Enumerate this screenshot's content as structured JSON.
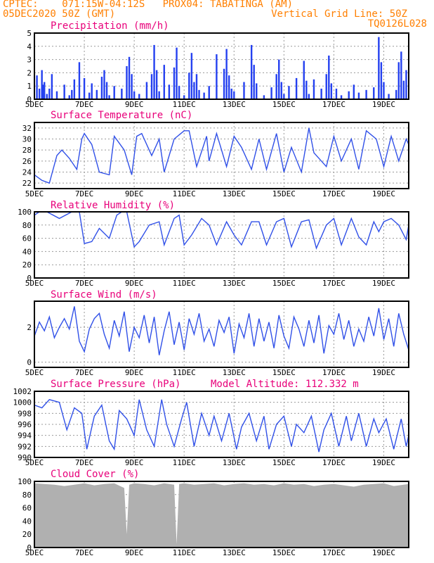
{
  "header": {
    "line1": "CPTEC:    071:15W-04:12S   PROX04: TABATINGA (AM)",
    "line2_left": "05DEC2020 50Z (GMT)",
    "line2_right": "Vertical Grid Line: 50Z",
    "line3_right": "TQ0126L028"
  },
  "x_axis": {
    "ticks": [
      {
        "label": "5DEC",
        "day": 5
      },
      {
        "label": "7DEC",
        "day": 7
      },
      {
        "label": "9DEC",
        "day": 9
      },
      {
        "label": "11DEC",
        "day": 11
      },
      {
        "label": "13DEC",
        "day": 13
      },
      {
        "label": "15DEC",
        "day": 15
      },
      {
        "label": "17DEC",
        "day": 17
      },
      {
        "label": "19DEC",
        "day": 19
      }
    ],
    "start_day": 5,
    "end_day": 20
  },
  "colors": {
    "line": "#3050e8",
    "bar": "#2440f0",
    "cloud": "#b0b0b0",
    "title": "#e8007a",
    "header": "#ff7f00"
  },
  "chart_data": [
    {
      "type": "bar",
      "title": "Precipitation (mm/h)",
      "ylim": [
        0,
        5
      ],
      "yticks": [
        "0",
        "1",
        "2",
        "3",
        "4",
        "5"
      ],
      "x": [
        5.1,
        5.2,
        5.3,
        5.35,
        5.4,
        5.5,
        5.6,
        5.7,
        5.9,
        6.2,
        6.4,
        6.5,
        6.6,
        6.8,
        7.0,
        7.2,
        7.3,
        7.5,
        7.7,
        7.8,
        7.9,
        8.0,
        8.2,
        8.5,
        8.7,
        8.8,
        8.9,
        9.0,
        9.2,
        9.5,
        9.7,
        9.8,
        9.9,
        10.0,
        10.2,
        10.4,
        10.6,
        10.7,
        10.8,
        11.0,
        11.2,
        11.3,
        11.4,
        11.5,
        11.6,
        11.8,
        12.0,
        12.3,
        12.6,
        12.7,
        12.8,
        12.9,
        13.0,
        13.4,
        13.7,
        13.8,
        13.9,
        14.2,
        14.5,
        14.7,
        14.8,
        14.9,
        15.0,
        15.2,
        15.5,
        15.8,
        15.9,
        16.0,
        16.2,
        16.5,
        16.7,
        16.8,
        16.9,
        17.1,
        17.3,
        17.6,
        17.8,
        18.0,
        18.3,
        18.6,
        18.8,
        18.9,
        19.0,
        19.2,
        19.5,
        19.6,
        19.7,
        19.8,
        19.9
      ],
      "values": [
        1.8,
        0.8,
        2.2,
        1.1,
        1.3,
        0.4,
        0.8,
        1.9,
        0.6,
        1.1,
        0.3,
        0.7,
        1.5,
        2.8,
        1.6,
        0.5,
        1.2,
        0.7,
        1.7,
        2.2,
        1.3,
        0.3,
        1.0,
        0.8,
        2.5,
        3.2,
        1.9,
        0.6,
        0.4,
        1.3,
        1.9,
        4.1,
        2.2,
        0.6,
        2.6,
        1.1,
        2.4,
        3.9,
        1.0,
        0.3,
        2.0,
        3.5,
        1.3,
        1.9,
        0.7,
        0.5,
        1.0,
        3.4,
        2.3,
        3.8,
        1.8,
        0.8,
        0.6,
        1.3,
        4.1,
        2.6,
        1.2,
        0.3,
        0.9,
        1.9,
        3.0,
        1.3,
        0.4,
        1.0,
        1.6,
        2.9,
        1.4,
        0.4,
        1.5,
        0.8,
        1.9,
        3.3,
        1.2,
        0.8,
        0.3,
        0.6,
        1.1,
        0.5,
        0.7,
        0.9,
        4.7,
        2.8,
        1.3,
        0.4,
        0.7,
        2.8,
        3.6,
        1.4,
        2.2
      ]
    },
    {
      "type": "line",
      "title": "Surface Temperature (nC)",
      "ylim": [
        21,
        33
      ],
      "yticks": [
        "22",
        "24",
        "26",
        "28",
        "30",
        "32"
      ],
      "x": [
        5.0,
        5.3,
        5.6,
        5.9,
        6.1,
        6.4,
        6.7,
        6.9,
        7.0,
        7.3,
        7.6,
        8.0,
        8.2,
        8.6,
        8.9,
        9.1,
        9.3,
        9.7,
        10.0,
        10.2,
        10.6,
        11.0,
        11.2,
        11.5,
        11.9,
        12.0,
        12.3,
        12.7,
        13.0,
        13.3,
        13.7,
        14.0,
        14.3,
        14.7,
        15.0,
        15.3,
        15.7,
        16.0,
        16.2,
        16.7,
        17.0,
        17.3,
        17.7,
        18.0,
        18.3,
        18.7,
        19.0,
        19.3,
        19.6,
        19.9,
        20.0
      ],
      "values": [
        23.5,
        22.5,
        22.0,
        27.0,
        28.0,
        26.5,
        24.5,
        30.0,
        31.0,
        29.0,
        24.0,
        23.5,
        30.5,
        28.0,
        23.5,
        30.5,
        31.0,
        27.0,
        30.0,
        24.0,
        30.0,
        31.5,
        31.5,
        25.0,
        30.5,
        26.0,
        31.0,
        25.0,
        30.5,
        28.5,
        24.5,
        30.0,
        24.5,
        31.0,
        24.0,
        28.5,
        24.0,
        32.0,
        27.5,
        25.0,
        30.5,
        26.0,
        30.0,
        24.5,
        31.5,
        30.0,
        25.0,
        30.5,
        26.0,
        30.0,
        29.0
      ]
    },
    {
      "type": "line",
      "title": "Relative Humidity (%)",
      "ylim": [
        0,
        100
      ],
      "yticks": [
        "0",
        "20",
        "40",
        "60",
        "80",
        "100"
      ],
      "x": [
        5.0,
        5.2,
        5.5,
        6.0,
        6.5,
        6.8,
        7.0,
        7.3,
        7.6,
        8.0,
        8.3,
        8.5,
        8.7,
        9.0,
        9.2,
        9.6,
        10.0,
        10.2,
        10.6,
        10.8,
        11.0,
        11.3,
        11.7,
        12.0,
        12.3,
        12.7,
        13.0,
        13.3,
        13.7,
        14.0,
        14.3,
        14.7,
        15.0,
        15.3,
        15.7,
        16.0,
        16.3,
        16.7,
        17.0,
        17.3,
        17.7,
        18.0,
        18.3,
        18.6,
        18.8,
        19.0,
        19.3,
        19.6,
        19.9,
        20.0
      ],
      "values": [
        95,
        100,
        100,
        90,
        100,
        100,
        52,
        55,
        75,
        60,
        95,
        100,
        100,
        47,
        55,
        80,
        85,
        50,
        90,
        95,
        50,
        65,
        90,
        80,
        50,
        85,
        65,
        50,
        85,
        85,
        50,
        85,
        90,
        47,
        85,
        88,
        45,
        80,
        90,
        50,
        90,
        62,
        50,
        85,
        70,
        85,
        90,
        80,
        58,
        80
      ]
    },
    {
      "type": "line",
      "title": "Surface Wind (m/s)",
      "ylim": [
        -0.3,
        3.5
      ],
      "yticks": [
        "0",
        "2"
      ],
      "x": [
        5.0,
        5.2,
        5.4,
        5.6,
        5.8,
        6.0,
        6.2,
        6.4,
        6.6,
        6.8,
        7.0,
        7.2,
        7.4,
        7.6,
        7.8,
        8.0,
        8.2,
        8.4,
        8.6,
        8.8,
        9.0,
        9.2,
        9.4,
        9.6,
        9.8,
        10.0,
        10.2,
        10.4,
        10.6,
        10.8,
        11.0,
        11.2,
        11.4,
        11.6,
        11.8,
        12.0,
        12.2,
        12.4,
        12.6,
        12.8,
        13.0,
        13.2,
        13.4,
        13.6,
        13.8,
        14.0,
        14.2,
        14.4,
        14.6,
        14.8,
        15.0,
        15.2,
        15.4,
        15.6,
        15.8,
        16.0,
        16.2,
        16.4,
        16.6,
        16.8,
        17.0,
        17.2,
        17.4,
        17.6,
        17.8,
        18.0,
        18.2,
        18.4,
        18.6,
        18.8,
        19.0,
        19.2,
        19.4,
        19.6,
        19.8,
        20.0
      ],
      "values": [
        1.5,
        2.3,
        1.8,
        2.6,
        1.4,
        2.0,
        2.5,
        1.9,
        3.2,
        1.2,
        0.6,
        1.9,
        2.5,
        2.8,
        1.6,
        0.8,
        2.4,
        1.5,
        2.9,
        0.6,
        2.0,
        1.4,
        2.7,
        1.1,
        2.6,
        0.4,
        1.8,
        2.9,
        1.0,
        2.3,
        0.7,
        2.5,
        1.6,
        2.8,
        1.2,
        1.9,
        0.9,
        2.4,
        1.7,
        2.6,
        0.5,
        2.2,
        1.4,
        2.8,
        0.9,
        2.5,
        1.2,
        2.3,
        0.8,
        2.7,
        1.5,
        0.8,
        2.6,
        1.9,
        0.9,
        2.4,
        1.1,
        2.7,
        0.5,
        2.1,
        1.6,
        2.8,
        1.3,
        2.4,
        0.9,
        1.9,
        1.2,
        2.6,
        1.5,
        3.1,
        1.3,
        2.5,
        0.9,
        2.8,
        1.6,
        0.7
      ]
    },
    {
      "type": "line",
      "title": "Surface Pressure (hPa)",
      "subtitle": "Model Altitude: 112.332 m",
      "ylim": [
        990,
        1002
      ],
      "yticks": [
        "990",
        "992",
        "994",
        "996",
        "998",
        "1000",
        "1002"
      ],
      "x": [
        5.0,
        5.3,
        5.6,
        6.0,
        6.3,
        6.6,
        6.9,
        7.1,
        7.4,
        7.7,
        8.0,
        8.2,
        8.4,
        8.7,
        9.0,
        9.2,
        9.5,
        9.8,
        10.1,
        10.3,
        10.6,
        10.9,
        11.1,
        11.4,
        11.7,
        12.0,
        12.2,
        12.5,
        12.8,
        13.1,
        13.3,
        13.6,
        13.9,
        14.2,
        14.4,
        14.7,
        15.0,
        15.3,
        15.5,
        15.8,
        16.1,
        16.4,
        16.6,
        16.9,
        17.2,
        17.5,
        17.7,
        18.0,
        18.3,
        18.6,
        18.8,
        19.1,
        19.4,
        19.7,
        19.9,
        20.0
      ],
      "values": [
        999.5,
        999.0,
        1000.5,
        1000.0,
        995.0,
        999.0,
        998.0,
        991.5,
        997.5,
        999.5,
        993.0,
        991.5,
        998.5,
        997.0,
        994.0,
        1000.5,
        995.0,
        992.0,
        1000.5,
        996.0,
        992.0,
        997.0,
        1000.0,
        992.0,
        998.0,
        994.0,
        997.5,
        993.0,
        998.0,
        991.5,
        995.5,
        998.0,
        993.0,
        997.5,
        991.5,
        996.0,
        997.5,
        992.0,
        996.0,
        994.5,
        997.5,
        991.0,
        995.0,
        998.0,
        992.0,
        997.5,
        993.0,
        998.0,
        992.0,
        997.0,
        994.5,
        997.0,
        991.5,
        997.0,
        992.0,
        994.0
      ]
    },
    {
      "type": "area",
      "title": "Cloud Cover (%)",
      "ylim": [
        0,
        100
      ],
      "yticks": [
        "0",
        "20",
        "40",
        "60",
        "80",
        "100"
      ],
      "x": [
        5.0,
        5.4,
        5.8,
        6.2,
        6.6,
        7.0,
        7.4,
        7.8,
        8.2,
        8.6,
        8.7,
        8.8,
        9.0,
        9.4,
        9.8,
        10.2,
        10.6,
        10.7,
        10.8,
        11.0,
        11.4,
        11.8,
        12.2,
        12.6,
        13.0,
        13.4,
        13.8,
        14.2,
        14.6,
        15.0,
        15.4,
        15.8,
        16.2,
        16.6,
        17.0,
        17.4,
        17.8,
        18.2,
        18.6,
        19.0,
        19.4,
        19.8,
        20.0
      ],
      "values": [
        97,
        96,
        95,
        93,
        95,
        97,
        94,
        96,
        97,
        90,
        20,
        95,
        97,
        96,
        94,
        97,
        95,
        5,
        96,
        97,
        95,
        96,
        97,
        94,
        96,
        97,
        95,
        96,
        94,
        97,
        95,
        96,
        93,
        95,
        96,
        94,
        92,
        95,
        96,
        97,
        93,
        95,
        96
      ]
    }
  ]
}
